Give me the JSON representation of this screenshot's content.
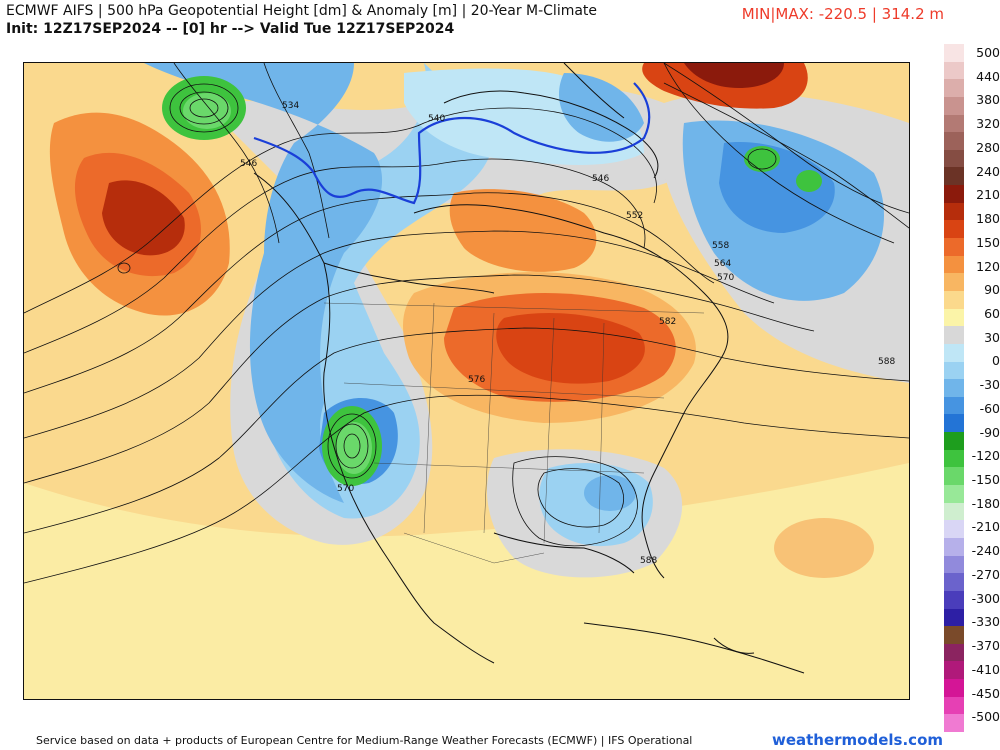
{
  "header": {
    "title": "ECMWF AIFS | 500 hPa Geopotential Height [dm] & Anomaly [m] | 20-Year M-Climate",
    "subtitle": "Init: 12Z17SEP2024 -- [0] hr --> Valid Tue 12Z17SEP2024",
    "minmax": "MIN|MAX: -220.5 | 314.2 m",
    "minmax_color": "#ee3b2a"
  },
  "legend": {
    "colors": [
      "#f8e4e4",
      "#ecc9c8",
      "#dcaeab",
      "#c9938f",
      "#b37a74",
      "#9c625a",
      "#854d43",
      "#6b3326",
      "#8b1a0c",
      "#b62d0c",
      "#d94413",
      "#ec6a2a",
      "#f4913f",
      "#f8b662",
      "#fbd98c",
      "#fbf4a8",
      "#d8d8d8",
      "#bfe6f6",
      "#9bd2f2",
      "#70b5ea",
      "#4694e1",
      "#2374d6",
      "#1e9e1e",
      "#3ec33e",
      "#6ad86a",
      "#98e898",
      "#cfeecf",
      "#d9d6f5",
      "#b6b0ea",
      "#918adc",
      "#6b63cc",
      "#4a3dbb",
      "#2d1fa5",
      "#7a4a2a",
      "#8b2460",
      "#b0197a",
      "#d41596",
      "#e640b4",
      "#f07ad2"
    ],
    "labels": [
      "500",
      "440",
      "380",
      "320",
      "280",
      "240",
      "210",
      "180",
      "150",
      "120",
      "90",
      "60",
      "30",
      "0",
      "-30",
      "-60",
      "-90",
      "-120",
      "-150",
      "-180",
      "-210",
      "-240",
      "-270",
      "-300",
      "-330",
      "-370",
      "-410",
      "-450",
      "-500"
    ]
  },
  "map": {
    "contour_labels": [
      {
        "text": "534"
      },
      {
        "text": "540"
      },
      {
        "text": "546"
      },
      {
        "text": "546"
      },
      {
        "text": "552"
      },
      {
        "text": "558"
      },
      {
        "text": "564"
      },
      {
        "text": "570"
      },
      {
        "text": "582"
      },
      {
        "text": "576"
      },
      {
        "text": "570"
      },
      {
        "text": "588"
      },
      {
        "text": "588"
      }
    ]
  },
  "footer": {
    "credit": "Service based on data + products of European Centre for Medium-Range Weather Forecasts (ECMWF) | IFS Operational",
    "brand": "weathermodels.com"
  }
}
